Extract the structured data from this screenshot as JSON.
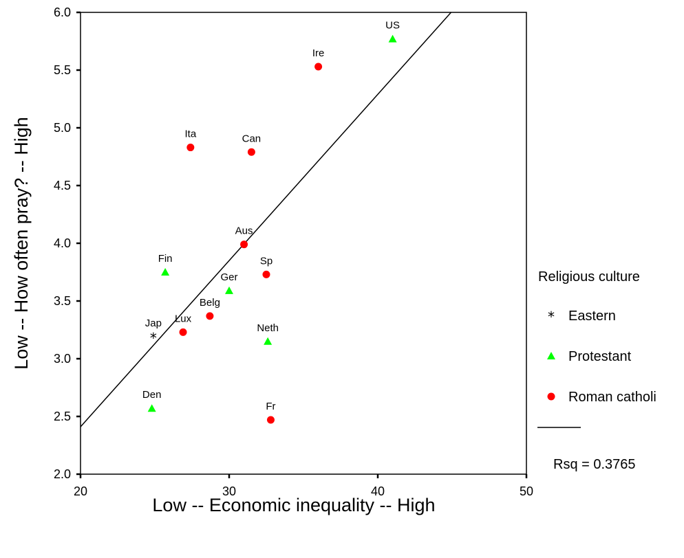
{
  "chart_data": {
    "type": "scatter",
    "xlabel": "Low -- Economic inequality -- High",
    "ylabel": "Low -- How often pray?  -- High",
    "xlim": [
      20,
      50
    ],
    "ylim": [
      2.0,
      6.0
    ],
    "x_ticks": [
      20,
      30,
      40,
      50
    ],
    "y_ticks": [
      2.0,
      2.5,
      3.0,
      3.5,
      4.0,
      4.5,
      5.0,
      5.5,
      6.0
    ],
    "grid": false,
    "legend": {
      "title": "Religious culture",
      "position": "right",
      "entries": [
        {
          "label": "Eastern",
          "marker": "asterisk",
          "color": "#000000"
        },
        {
          "label": "Protestant",
          "marker": "triangle",
          "color": "#00ff00"
        },
        {
          "label": "Roman catholi",
          "marker": "circle",
          "color": "#ff0000"
        }
      ],
      "fit_line_label": "Rsq = 0.3765"
    },
    "fit_line": {
      "slope": 0.144,
      "intercept": -0.47
    },
    "series": [
      {
        "name": "Eastern",
        "marker": "asterisk",
        "color": "#000000",
        "points": [
          {
            "label": "Jap",
            "x": 24.9,
            "y": 3.19
          }
        ]
      },
      {
        "name": "Protestant",
        "marker": "triangle",
        "color": "#00ff00",
        "points": [
          {
            "label": "US",
            "x": 41.0,
            "y": 5.77
          },
          {
            "label": "Fin",
            "x": 25.7,
            "y": 3.75
          },
          {
            "label": "Ger",
            "x": 30.0,
            "y": 3.59
          },
          {
            "label": "Neth",
            "x": 32.6,
            "y": 3.15
          },
          {
            "label": "Den",
            "x": 24.8,
            "y": 2.57
          }
        ]
      },
      {
        "name": "Roman catholi",
        "marker": "circle",
        "color": "#ff0000",
        "points": [
          {
            "label": "Ire",
            "x": 36.0,
            "y": 5.53
          },
          {
            "label": "Ita",
            "x": 27.4,
            "y": 4.83
          },
          {
            "label": "Can",
            "x": 31.5,
            "y": 4.79
          },
          {
            "label": "Aus",
            "x": 31.0,
            "y": 3.99
          },
          {
            "label": "Sp",
            "x": 32.5,
            "y": 3.73
          },
          {
            "label": "Belg",
            "x": 28.7,
            "y": 3.37
          },
          {
            "label": "Lux",
            "x": 26.9,
            "y": 3.23
          },
          {
            "label": "Fr",
            "x": 32.8,
            "y": 2.47
          }
        ]
      }
    ]
  }
}
